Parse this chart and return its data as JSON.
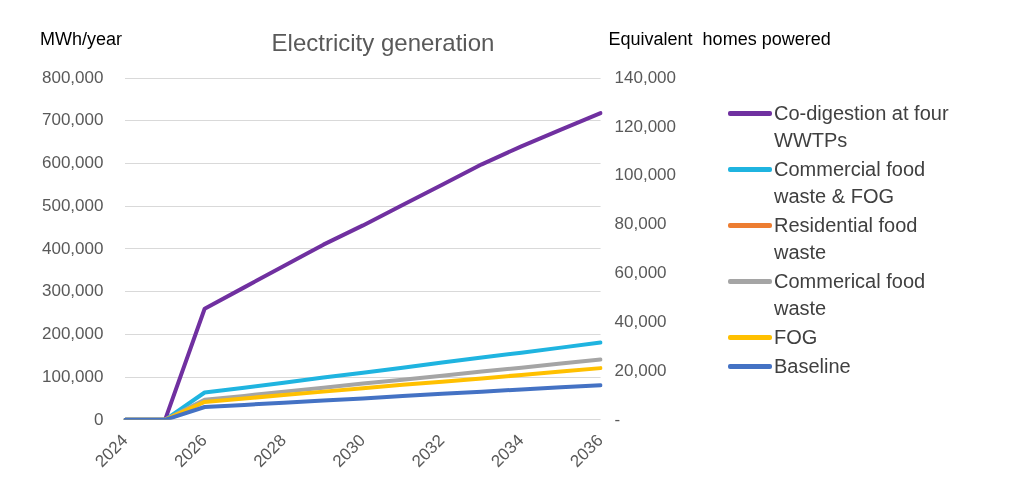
{
  "chart_data": {
    "type": "line",
    "title": "Electricity generation",
    "ylabel": "MWh/year",
    "y2label": "Equivalent  homes powered",
    "categories": [
      "2024",
      null,
      "2026",
      null,
      "2028",
      null,
      "2030",
      null,
      "2032",
      null,
      "2034",
      null,
      "2036"
    ],
    "series": [
      {
        "name": "Co-digestion at four WWTPs",
        "color": "#7030a0",
        "values": [
          0,
          0,
          260000,
          310000,
          360000,
          410000,
          455000,
          503000,
          550000,
          598000,
          640000,
          679000,
          718000
        ]
      },
      {
        "name": "Commercial food waste & FOG",
        "color": "#1fb4e0",
        "values": [
          0,
          0,
          64000,
          75000,
          87000,
          99000,
          110000,
          122000,
          134000,
          146000,
          157000,
          169000,
          181000
        ]
      },
      {
        "name": "Residential food waste",
        "color": "#ed7d31",
        "values": [
          null,
          null,
          null,
          null,
          null,
          null,
          null,
          null,
          null,
          null,
          null,
          null,
          null
        ]
      },
      {
        "name": "Commerical food waste",
        "color": "#a5a5a5",
        "values": [
          0,
          0,
          47000,
          56000,
          66000,
          75000,
          85000,
          94000,
          103000,
          113000,
          122000,
          132000,
          141000
        ]
      },
      {
        "name": "FOG",
        "color": "#ffc000",
        "values": [
          0,
          0,
          42000,
          50000,
          58000,
          66000,
          74000,
          82000,
          89000,
          97000,
          105000,
          113000,
          121000
        ]
      },
      {
        "name": "Baseline",
        "color": "#4472c4",
        "values": [
          0,
          0,
          30000,
          35000,
          40000,
          45000,
          50000,
          56000,
          61000,
          66000,
          71000,
          76000,
          81000
        ]
      }
    ],
    "ylim": [
      0,
      800000
    ],
    "yticks": [
      {
        "value": 0,
        "label": "0"
      },
      {
        "value": 100000,
        "label": "100,000"
      },
      {
        "value": 200000,
        "label": "200,000"
      },
      {
        "value": 300000,
        "label": "300,000"
      },
      {
        "value": 400000,
        "label": "400,000"
      },
      {
        "value": 500000,
        "label": "500,000"
      },
      {
        "value": 600000,
        "label": "600,000"
      },
      {
        "value": 700000,
        "label": "700,000"
      },
      {
        "value": 800000,
        "label": "800,000"
      }
    ],
    "y2lim": [
      0,
      140000
    ],
    "y2ticks": [
      {
        "value": 0,
        "label": "-"
      },
      {
        "value": 20000,
        "label": "20,000"
      },
      {
        "value": 40000,
        "label": "40,000"
      },
      {
        "value": 60000,
        "label": "60,000"
      },
      {
        "value": 80000,
        "label": "80,000"
      },
      {
        "value": 100000,
        "label": "100,000"
      },
      {
        "value": 120000,
        "label": "120,000"
      },
      {
        "value": 140000,
        "label": "140,000"
      }
    ],
    "grid": "y",
    "legend": "right",
    "marker": "none",
    "line_style": "solid"
  }
}
